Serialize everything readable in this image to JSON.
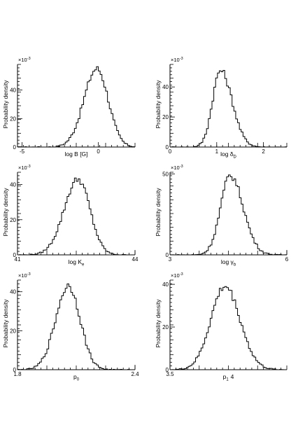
{
  "chart_data": [
    {
      "type": "histogram",
      "xlabel": "log B [G]",
      "ylabel": "Probability density",
      "exponent_label": "×10",
      "exponent_power": "-3",
      "xlim": [
        -5.3,
        2.4
      ],
      "ylim": [
        0,
        58
      ],
      "xtick_values": [
        -5,
        0
      ],
      "xtick_labels": [
        "-5",
        "0"
      ],
      "ytick_values": [
        0,
        20,
        40
      ],
      "ytick_labels": [
        "0",
        "20",
        "40"
      ],
      "peak_x": -0.1,
      "peak_density": 55,
      "sigma_left": 0.85,
      "sigma_right": 0.75
    },
    {
      "type": "histogram",
      "xlabel": "log δ",
      "xlabel_sub": "D",
      "ylabel": "Probability density",
      "exponent_label": "×10",
      "exponent_power": "-3",
      "xlim": [
        0,
        2.5
      ],
      "ylim": [
        0,
        55
      ],
      "xtick_values": [
        0,
        1,
        2
      ],
      "xtick_labels": [
        "0",
        "1",
        "2"
      ],
      "ytick_values": [
        0,
        20,
        40
      ],
      "ytick_labels": [
        "0",
        "20",
        "40"
      ],
      "peak_x": 1.08,
      "peak_density": 51,
      "sigma_left": 0.17,
      "sigma_right": 0.25
    },
    {
      "type": "histogram",
      "xlabel": "log K",
      "xlabel_sub": "e",
      "ylabel": "Probability density",
      "exponent_label": "×10",
      "exponent_power": "-3",
      "xlim": [
        41,
        44
      ],
      "ylim": [
        0,
        47
      ],
      "xtick_values": [
        41,
        44
      ],
      "xtick_labels": [
        "41",
        "44"
      ],
      "ytick_values": [
        0,
        20,
        40
      ],
      "ytick_labels": [
        "0",
        "20",
        "40"
      ],
      "peak_x": 42.55,
      "peak_density": 43,
      "sigma_left": 0.36,
      "sigma_right": 0.3
    },
    {
      "type": "histogram",
      "xlabel": "log γ",
      "xlabel_sub": "b",
      "ylabel": "Probability density",
      "exponent_label": "×10",
      "exponent_power": "-3",
      "xlim": [
        3,
        6
      ],
      "ylim": [
        0,
        51
      ],
      "xtick_values": [
        3,
        6
      ],
      "xtick_labels": [
        "3",
        "6"
      ],
      "ytick_values": [
        0,
        50
      ],
      "ytick_labels": [
        "0",
        "50"
      ],
      "peak_x": 4.55,
      "peak_density": 49,
      "sigma_left": 0.25,
      "sigma_right": 0.33
    },
    {
      "type": "histogram",
      "xlabel": "p",
      "xlabel_sub": "0",
      "ylabel": "Probability density",
      "exponent_label": "×10",
      "exponent_power": "-3",
      "xlim": [
        1.8,
        2.4
      ],
      "ylim": [
        0,
        46
      ],
      "xtick_values": [
        1.8,
        2.4
      ],
      "xtick_labels": [
        "1.8",
        "2.4"
      ],
      "ytick_values": [
        0,
        20,
        40
      ],
      "ytick_labels": [
        "0",
        "20",
        "40"
      ],
      "peak_x": 2.06,
      "peak_density": 43,
      "sigma_left": 0.065,
      "sigma_right": 0.06
    },
    {
      "type": "histogram",
      "xlabel": "p",
      "xlabel_sub": "1",
      "xlabel_after": "4",
      "ylabel": "Probability density",
      "exponent_label": "×10",
      "exponent_power": "-3",
      "xlim": [
        3.5,
        4.5
      ],
      "ylim": [
        0,
        42
      ],
      "xtick_values": [
        3.5
      ],
      "xtick_labels": [
        "3.5"
      ],
      "ytick_values": [
        0,
        20,
        40
      ],
      "ytick_labels": [
        "0",
        "20",
        "40"
      ],
      "peak_x": 3.97,
      "peak_density": 39,
      "sigma_left": 0.12,
      "sigma_right": 0.13
    }
  ]
}
